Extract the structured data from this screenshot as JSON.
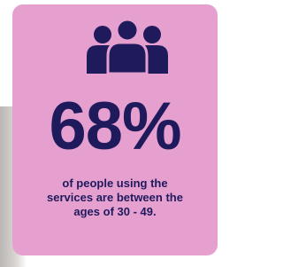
{
  "stat": {
    "value": "68%",
    "caption_lines": [
      "of people using the",
      "services are between the",
      "ages of 30 - 49."
    ]
  }
}
